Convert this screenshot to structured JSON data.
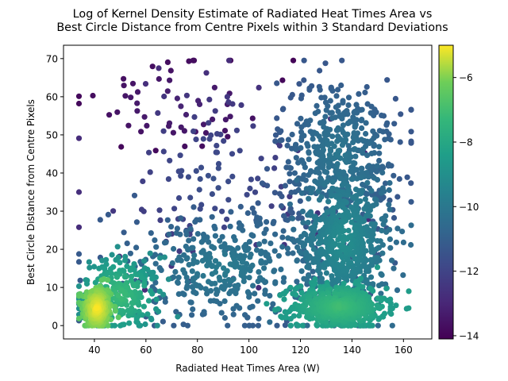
{
  "chart_data": {
    "type": "scatter",
    "title_lines": [
      "Log of Kernel Density Estimate of Radiated Heat Times Area vs",
      "Best Circle Distance from Centre Pixels within 3 Standard Deviations"
    ],
    "xlabel": "Radiated Heat Times Area (W)",
    "ylabel": "Best Circle Distance from Centre Pixels",
    "xlim": [
      28,
      171
    ],
    "ylim": [
      -3.5,
      73.5
    ],
    "xticks": [
      40,
      60,
      80,
      100,
      120,
      140,
      160
    ],
    "yticks": [
      0,
      10,
      20,
      30,
      40,
      50,
      60,
      70
    ],
    "colorbar": {
      "label": "",
      "range": [
        -14.1,
        -5.0
      ],
      "ticks": [
        -14,
        -12,
        -10,
        -8,
        -6
      ],
      "tick_labels": [
        "−14",
        "−12",
        "−10",
        "−8",
        "−6"
      ],
      "colormap": "viridis"
    },
    "grid": false,
    "clusters": [
      {
        "cx": 41,
        "cy": 4.5,
        "sx": 3.0,
        "sy": 3.2,
        "n": 260,
        "cmin": -6.5,
        "cmax": -5.0
      },
      {
        "cx": 50,
        "cy": 8,
        "sx": 8,
        "sy": 5,
        "n": 260,
        "cmin": -9.0,
        "cmax": -7.0
      },
      {
        "cx": 135,
        "cy": 5,
        "sx": 9,
        "sy": 3,
        "n": 520,
        "cmin": -8.5,
        "cmax": -7.0
      },
      {
        "cx": 137,
        "cy": 22,
        "sx": 9,
        "sy": 10,
        "n": 700,
        "cmin": -10.5,
        "cmax": -9.0
      },
      {
        "cx": 135,
        "cy": 45,
        "sx": 12,
        "sy": 10,
        "n": 450,
        "cmin": -11.3,
        "cmax": -10.0
      },
      {
        "cx": 90,
        "cy": 15,
        "sx": 22,
        "sy": 8,
        "n": 400,
        "cmin": -11.2,
        "cmax": -9.8
      },
      {
        "cx": 85,
        "cy": 38,
        "sx": 25,
        "sy": 14,
        "n": 120,
        "cmin": -12.8,
        "cmax": -11.5
      },
      {
        "cx": 75,
        "cy": 58,
        "sx": 22,
        "sy": 7,
        "n": 55,
        "cmin": -14.0,
        "cmax": -13.0
      }
    ]
  }
}
